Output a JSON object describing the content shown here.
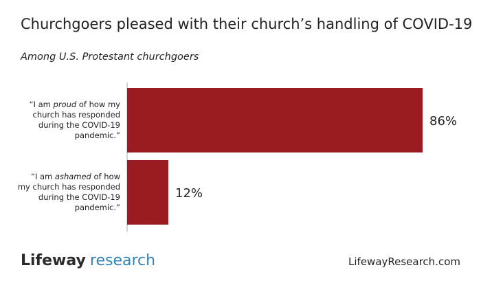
{
  "chart_data": {
    "type": "bar",
    "orientation": "horizontal",
    "title": "Churchgoers pleased with their church’s handling of COVID-19",
    "subtitle": "Among U.S. Protestant churchgoers",
    "categories": [
      "“I am proud of how my church has responded during the COVID-19 pandemic.”",
      "“I am ashamed of how my church has responded during the COVID-19 pandemic.”"
    ],
    "values": [
      86,
      12
    ],
    "value_labels": [
      "86%",
      "12%"
    ],
    "color": "#9b1c20"
  },
  "footer": {
    "logo_word": "Lifeway",
    "logo_word_2": "research",
    "url": "LifewayResearch.com"
  }
}
